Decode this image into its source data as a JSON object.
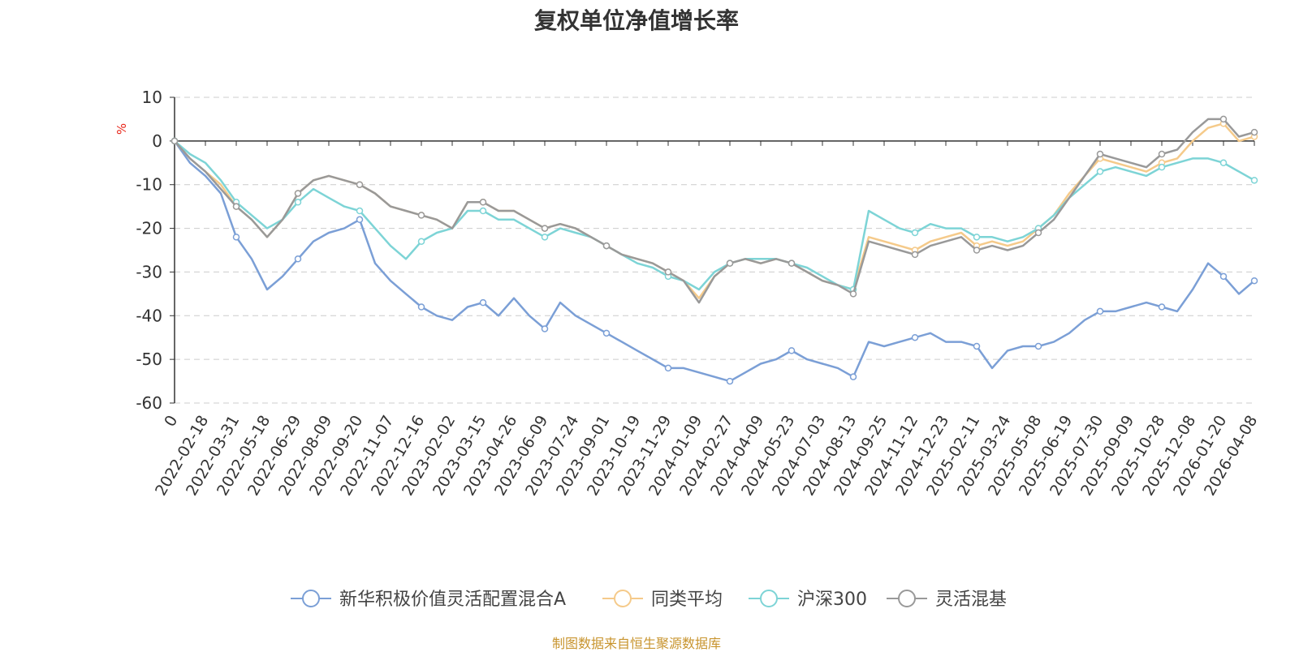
{
  "title": "复权单位净值增长率",
  "unit_label": "%",
  "source": "制图数据来自恒生聚源数据库",
  "chart_data": {
    "type": "line",
    "title": "复权单位净值增长率",
    "ylabel": "%",
    "ylim": [
      -60,
      10
    ],
    "yticks": [
      10,
      0,
      -10,
      -20,
      -30,
      -40,
      -50,
      -60
    ],
    "grid": true,
    "legend_position": "bottom-center",
    "x_labels": [
      "0",
      "2022-02-18",
      "2022-03-31",
      "2022-05-18",
      "2022-06-29",
      "2022-08-09",
      "2022-09-20",
      "2022-11-07",
      "2022-12-16",
      "2023-02-02",
      "2023-03-15",
      "2023-04-26",
      "2023-06-09",
      "2023-07-24",
      "2023-09-01",
      "2023-10-19",
      "2023-11-29",
      "2024-01-09",
      "2024-02-27",
      "2024-04-09",
      "2024-05-23",
      "2024-07-03",
      "2024-08-13",
      "2024-09-25",
      "2024-11-12",
      "2024-12-23",
      "2025-02-11",
      "2025-03-24",
      "2025-05-08",
      "2025-06-19",
      "2025-07-30",
      "2025-09-09",
      "2025-10-28",
      "2025-12-08",
      "2026-01-20",
      "2026-04-08"
    ],
    "series": [
      {
        "name": "新华积极价值灵活配置混合A",
        "color": "#7b9fd6",
        "values": [
          0,
          -5,
          -8,
          -12,
          -22,
          -27,
          -34,
          -31,
          -27,
          -23,
          -21,
          -20,
          -18,
          -28,
          -32,
          -35,
          -38,
          -40,
          -41,
          -38,
          -37,
          -40,
          -36,
          -40,
          -43,
          -37,
          -40,
          -42,
          -44,
          -46,
          -48,
          -50,
          -52,
          -52,
          -53,
          -54,
          -55,
          -53,
          -51,
          -50,
          -48,
          -50,
          -51,
          -52,
          -54,
          -46,
          -47,
          -46,
          -45,
          -44,
          -46,
          -46,
          -47,
          -52,
          -48,
          -47,
          -47,
          -46,
          -44,
          -41,
          -39,
          -39,
          -38,
          -37,
          -38,
          -39,
          -34,
          -28,
          -31,
          -35,
          -32
        ]
      },
      {
        "name": "同类平均",
        "color": "#f5ca8a",
        "values": [
          0,
          -4,
          -7,
          -10,
          -15,
          -18,
          -22,
          -18,
          -12,
          -9,
          -8,
          -9,
          -10,
          -12,
          -15,
          -16,
          -17,
          -18,
          -20,
          -14,
          -14,
          -16,
          -16,
          -18,
          -20,
          -19,
          -20,
          -22,
          -24,
          -26,
          -27,
          -28,
          -30,
          -32,
          -36,
          -31,
          -28,
          -27,
          -28,
          -27,
          -28,
          -30,
          -32,
          -33,
          -34,
          -22,
          -23,
          -24,
          -25,
          -23,
          -22,
          -21,
          -24,
          -23,
          -24,
          -23,
          -20,
          -17,
          -12,
          -8,
          -4,
          -5,
          -6,
          -7,
          -5,
          -4,
          0,
          3,
          4,
          0,
          1
        ]
      },
      {
        "name": "沪深300",
        "color": "#7dd4d6",
        "values": [
          0,
          -3,
          -5,
          -9,
          -14,
          -17,
          -20,
          -18,
          -14,
          -11,
          -13,
          -15,
          -16,
          -20,
          -24,
          -27,
          -23,
          -21,
          -20,
          -16,
          -16,
          -18,
          -18,
          -20,
          -22,
          -20,
          -21,
          -22,
          -24,
          -26,
          -28,
          -29,
          -31,
          -32,
          -34,
          -30,
          -28,
          -27,
          -27,
          -27,
          -28,
          -29,
          -31,
          -33,
          -34,
          -16,
          -18,
          -20,
          -21,
          -19,
          -20,
          -20,
          -22,
          -22,
          -23,
          -22,
          -20,
          -17,
          -13,
          -10,
          -7,
          -6,
          -7,
          -8,
          -6,
          -5,
          -4,
          -4,
          -5,
          -7,
          -9
        ]
      },
      {
        "name": "灵活混基",
        "color": "#999999",
        "values": [
          0,
          -4,
          -7,
          -11,
          -15,
          -18,
          -22,
          -18,
          -12,
          -9,
          -8,
          -9,
          -10,
          -12,
          -15,
          -16,
          -17,
          -18,
          -20,
          -14,
          -14,
          -16,
          -16,
          -18,
          -20,
          -19,
          -20,
          -22,
          -24,
          -26,
          -27,
          -28,
          -30,
          -32,
          -37,
          -31,
          -28,
          -27,
          -28,
          -27,
          -28,
          -30,
          -32,
          -33,
          -35,
          -23,
          -24,
          -25,
          -26,
          -24,
          -23,
          -22,
          -25,
          -24,
          -25,
          -24,
          -21,
          -18,
          -13,
          -8,
          -3,
          -4,
          -5,
          -6,
          -3,
          -2,
          2,
          5,
          5,
          1,
          2
        ]
      }
    ]
  }
}
